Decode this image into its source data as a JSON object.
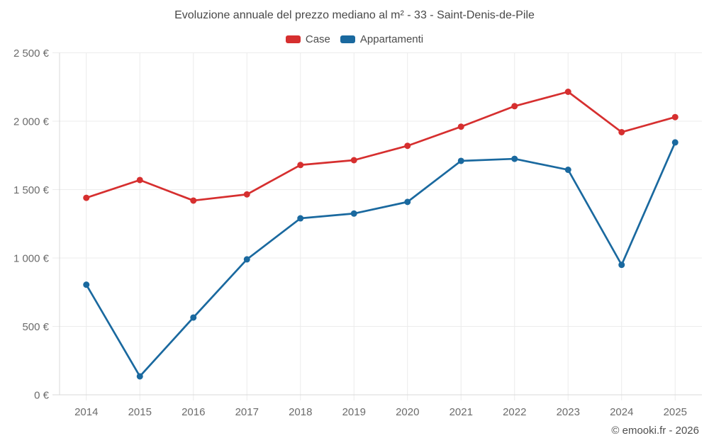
{
  "header": {
    "title": "Evoluzione annuale del prezzo mediano al m² - 33 - Saint-Denis-de-Pile"
  },
  "footer": {
    "copyright": "© emooki.fr - 2026"
  },
  "colors": {
    "case_red": "#d62f2f",
    "appartamenti_blue": "#1a699f",
    "gridline": "#ececec",
    "axis": "#d8d8d8",
    "tick_label": "#6b6b6b",
    "title_text": "#484848",
    "legend_text": "#4c4c4c"
  },
  "chart_data": {
    "type": "line",
    "title": "Evoluzione annuale del prezzo mediano al m² - 33 - Saint-Denis-de-Pile",
    "xlabel": "",
    "ylabel": "",
    "legend_position": "top",
    "grid": true,
    "ylim": [
      0,
      2500
    ],
    "ytick_step": 500,
    "ytick_labels": [
      "0 €",
      "500 €",
      "1 000 €",
      "1 500 €",
      "2 000 €",
      "2 500 €"
    ],
    "categories": [
      "2014",
      "2015",
      "2016",
      "2017",
      "2018",
      "2019",
      "2020",
      "2021",
      "2022",
      "2023",
      "2024",
      "2025"
    ],
    "series": [
      {
        "name": "Case",
        "color": "#d62f2f",
        "values": [
          1440,
          1570,
          1420,
          1465,
          1680,
          1715,
          1820,
          1960,
          2110,
          2215,
          1920,
          2030
        ]
      },
      {
        "name": "Appartamenti",
        "color": "#1a699f",
        "values": [
          805,
          135,
          565,
          990,
          1290,
          1325,
          1410,
          1710,
          1725,
          1645,
          950,
          1845
        ]
      }
    ]
  }
}
